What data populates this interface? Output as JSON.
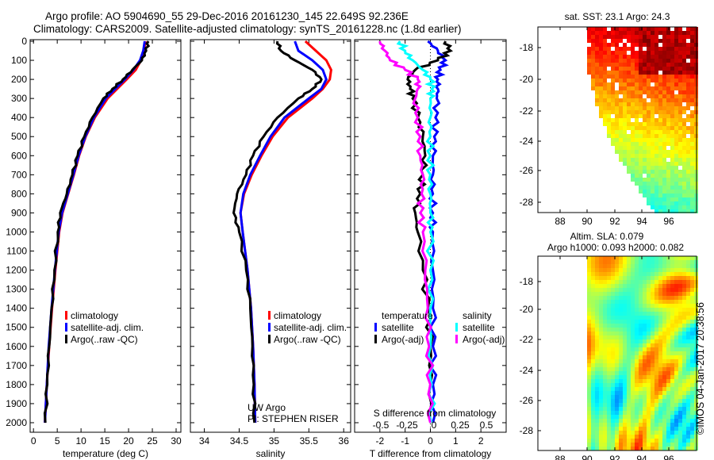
{
  "title_line1": "Argo profile: AO 5904690_55 29-Dec-2016 20161230_145 22.649S 92.236E",
  "title_line2": "Climatology: CARS2009. Satellite-adjusted climatology: synTS_20161228.nc (1.8d earlier)",
  "side_label": "©IMOS 04-Jan-2017 20:38:56",
  "chart_data": [
    {
      "type": "line",
      "id": "temp",
      "xlabel": "temperature (deg C)",
      "xlim": [
        -0.7,
        31
      ],
      "ylim": [
        0,
        2050
      ],
      "yreversed": true,
      "xticks": [
        0,
        5,
        10,
        15,
        20,
        25,
        30
      ],
      "yticks": [
        0,
        100,
        200,
        300,
        400,
        500,
        600,
        700,
        800,
        900,
        1000,
        1100,
        1200,
        1300,
        1400,
        1500,
        1600,
        1700,
        1800,
        1900,
        2000
      ],
      "depth": [
        0,
        50,
        100,
        150,
        200,
        250,
        300,
        400,
        500,
        600,
        700,
        800,
        900,
        1000,
        1200,
        1400,
        1600,
        1800,
        2000
      ],
      "legend": [
        "climatology",
        "satellite-adj. clim.",
        "Argo(..raw -QC)"
      ],
      "series": [
        {
          "name": "climatology",
          "color": "#ff0000",
          "values": [
            23.6,
            23.2,
            22.6,
            21.5,
            19.6,
            17.6,
            15.6,
            12.9,
            11.0,
            9.6,
            8.5,
            7.3,
            6.1,
            5.4,
            4.6,
            3.9,
            3.3,
            2.8,
            2.4
          ]
        },
        {
          "name": "satellite-adj. clim.",
          "color": "#0000ff",
          "values": [
            23.4,
            23.1,
            22.4,
            21.0,
            19.2,
            17.2,
            15.2,
            12.7,
            10.9,
            9.5,
            8.4,
            7.2,
            6.0,
            5.3,
            4.5,
            3.8,
            3.2,
            2.8,
            2.4
          ]
        },
        {
          "name": "Argo(..raw -QC)",
          "color": "#000000",
          "values": [
            24.2,
            23.7,
            22.8,
            20.8,
            18.8,
            16.6,
            14.7,
            12.4,
            10.7,
            9.3,
            8.2,
            7.0,
            5.6,
            5.1,
            4.4,
            3.8,
            3.3,
            2.9,
            2.5
          ]
        }
      ]
    },
    {
      "type": "line",
      "id": "sal",
      "xlabel": "salinity",
      "xlim": [
        33.8,
        36.1
      ],
      "ylim": [
        0,
        2050
      ],
      "yreversed": true,
      "xticks": [
        34,
        34.5,
        35,
        35.5,
        36
      ],
      "depth": [
        0,
        50,
        100,
        150,
        200,
        250,
        300,
        400,
        500,
        600,
        700,
        800,
        900,
        1000,
        1200,
        1400,
        1600,
        1800,
        2000
      ],
      "legend": [
        "climatology",
        "satellite-adj. clim.",
        "Argo(..raw -QC)"
      ],
      "annotation": [
        "UW Argo",
        "PI: STEPHEN RISER"
      ],
      "series": [
        {
          "name": "climatology",
          "color": "#ff0000",
          "values": [
            35.45,
            35.6,
            35.75,
            35.82,
            35.8,
            35.7,
            35.55,
            35.2,
            34.98,
            34.82,
            34.68,
            34.57,
            34.52,
            34.55,
            34.62,
            34.67,
            34.7,
            34.72,
            34.73
          ]
        },
        {
          "name": "satellite-adj. clim.",
          "color": "#0000ff",
          "values": [
            35.3,
            35.35,
            35.55,
            35.7,
            35.75,
            35.68,
            35.5,
            35.15,
            34.95,
            34.8,
            34.66,
            34.56,
            34.52,
            34.55,
            34.62,
            34.67,
            34.7,
            34.72,
            34.73
          ]
        },
        {
          "name": "Argo(..raw -QC)",
          "color": "#000000",
          "values": [
            35.05,
            35.1,
            35.3,
            35.55,
            35.68,
            35.55,
            35.35,
            35.05,
            34.85,
            34.7,
            34.6,
            34.47,
            34.42,
            34.5,
            34.6,
            34.66,
            34.69,
            34.71,
            34.72
          ]
        }
      ]
    },
    {
      "type": "line",
      "id": "diff",
      "xlabel": "T difference from climatology",
      "x2label": "S difference from climatology",
      "xlim": [
        -3,
        3
      ],
      "ylim": [
        0,
        2050
      ],
      "yreversed": true,
      "xticks": [
        -2,
        -1,
        0,
        1,
        2
      ],
      "x2ticks": [
        "-0.5",
        "-0.25",
        "0",
        "0.25",
        "0.5"
      ],
      "depth": [
        0,
        50,
        100,
        150,
        200,
        250,
        300,
        400,
        500,
        600,
        700,
        800,
        900,
        1000,
        1200,
        1400,
        1600,
        1800,
        2000
      ],
      "legend_titles": [
        "temperature",
        "salinity"
      ],
      "legend": [
        "satellite",
        "Argo(-adj)",
        "satellite",
        "Argo(-adj)"
      ],
      "series": [
        {
          "name": "temperature satellite",
          "color": "#0000ff",
          "values": [
            -0.1,
            0.3,
            0.6,
            0.4,
            0.3,
            0.3,
            0.25,
            0.2,
            0.15,
            0.1,
            0.1,
            0.1,
            0.1,
            0.1,
            0.1,
            0.1,
            0.1,
            0.1,
            0.1
          ]
        },
        {
          "name": "temperature Argo(-adj)",
          "color": "#000000",
          "values": [
            0.6,
            0.8,
            0.3,
            -0.6,
            -0.9,
            -0.8,
            -0.7,
            -0.5,
            -0.3,
            -0.2,
            -0.3,
            -0.4,
            -0.6,
            -0.5,
            -0.3,
            -0.1,
            0.0,
            0.0,
            0.0
          ]
        },
        {
          "name": "salinity satellite",
          "color": "#00ffff",
          "values": [
            -1.2,
            -1.0,
            -0.7,
            -0.3,
            0.0,
            0.05,
            0.0,
            0.0,
            0.0,
            0.0,
            0.0,
            0.0,
            0.0,
            0.0,
            0.0,
            0.0,
            0.0,
            0.05,
            0.05
          ]
        },
        {
          "name": "salinity Argo(-adj)",
          "color": "#ff00ff",
          "values": [
            -2.0,
            -1.8,
            -1.6,
            -1.0,
            -0.5,
            -0.5,
            -0.6,
            -0.5,
            -0.4,
            -0.4,
            -0.3,
            -0.35,
            -0.4,
            -0.3,
            -0.2,
            -0.1,
            -0.05,
            0.0,
            0.0
          ]
        }
      ]
    },
    {
      "type": "heatmap",
      "id": "sst",
      "title": "sat. SST: 23.1 Argo: 24.3",
      "xticks": [
        "88",
        "90",
        "92",
        "94",
        "96"
      ],
      "yticks": [
        "-18",
        "-20",
        "-22",
        "-24",
        "-26",
        "-28"
      ]
    },
    {
      "type": "heatmap",
      "id": "sla",
      "title": "Altim. SLA: 0.079",
      "title2": "Argo h1000: 0.093 h2000: 0.082",
      "xticks": [
        "88",
        "90",
        "92",
        "94",
        "96"
      ],
      "yticks": [
        "-18",
        "-20",
        "-22",
        "-24",
        "-26",
        "-28"
      ]
    }
  ]
}
